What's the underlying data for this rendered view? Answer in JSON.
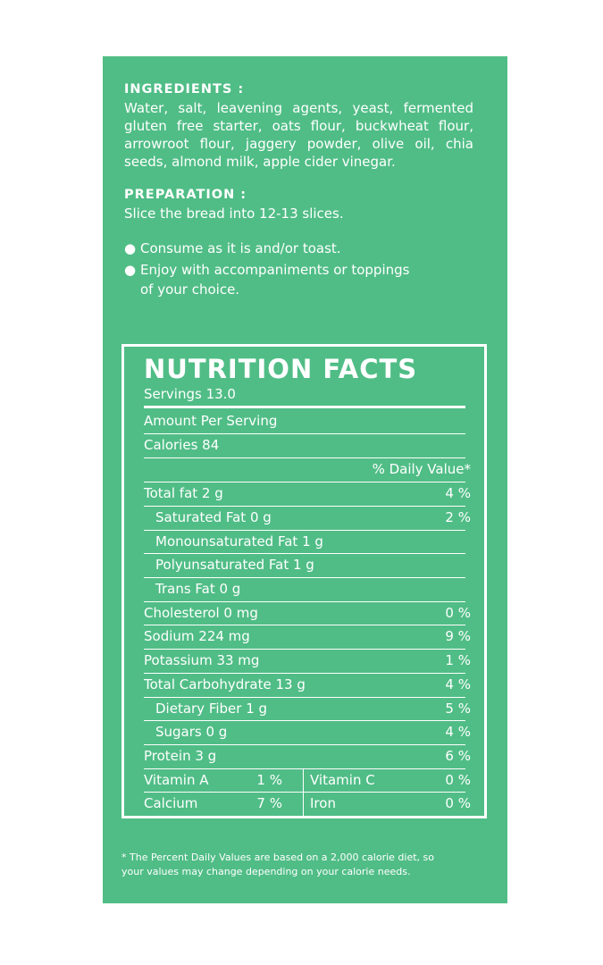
{
  "ingredients": {
    "title": "INGREDIENTS :",
    "lines": [
      "Water, salt, leavening agents, yeast, fermented",
      "gluten free starter, oats flour, buckwheat flour,",
      "arrowroot flour, jaggery powder, olive oil, chia",
      "seeds, almond milk, apple cider vinegar."
    ]
  },
  "preparation": {
    "title": "PREPARATION :",
    "text": "Slice the bread into 12-13 slices.",
    "bullets": [
      {
        "line1": "Consume as it is and/or toast.",
        "line2": ""
      },
      {
        "line1": "Enjoy with accompaniments or toppings",
        "line2": "of your choice."
      }
    ]
  },
  "nutrition": {
    "title": "NUTRITION FACTS",
    "servings": "Servings 13.0",
    "amount_per_serving": "Amount Per Serving",
    "calories": "Calories 84",
    "dv_header": "% Daily Value*",
    "rows": [
      {
        "label": "Total fat 2 g",
        "value": "4 %"
      },
      {
        "label": "Saturated Fat 0 g",
        "value": "2 %"
      },
      {
        "label": "Monounsaturated Fat 1 g",
        "value": ""
      },
      {
        "label": "Polyunsaturated Fat 1 g",
        "value": ""
      },
      {
        "label": "Trans Fat 0 g",
        "value": ""
      },
      {
        "label": "Cholesterol 0 mg",
        "value": "0 %"
      },
      {
        "label": "Sodium 224 mg",
        "value": "9 %"
      },
      {
        "label": "Potassium 33 mg",
        "value": "1 %"
      },
      {
        "label": "Total Carbohydrate 13 g",
        "value": "4 %"
      },
      {
        "label": "Dietary Fiber 1 g",
        "value": "5 %"
      },
      {
        "label": "Sugars 0 g",
        "value": "4 %"
      },
      {
        "label": "Protein 3 g",
        "value": "6 %"
      }
    ],
    "vitamins": [
      {
        "left_label": "Vitamin A",
        "left_value": "1 %",
        "right_label": "Vitamin C",
        "right_value": "0 %"
      },
      {
        "left_label": "Calcium",
        "left_value": "7 %",
        "right_label": "Iron",
        "right_value": "0 %"
      }
    ]
  },
  "footnote": {
    "line1": "* The Percent Daily Values are based on a 2,000 calorie diet, so",
    "line2": "your values may change depending on your calorie needs."
  },
  "colors": {
    "panel": "#50bd86",
    "text": "#ffffff"
  }
}
